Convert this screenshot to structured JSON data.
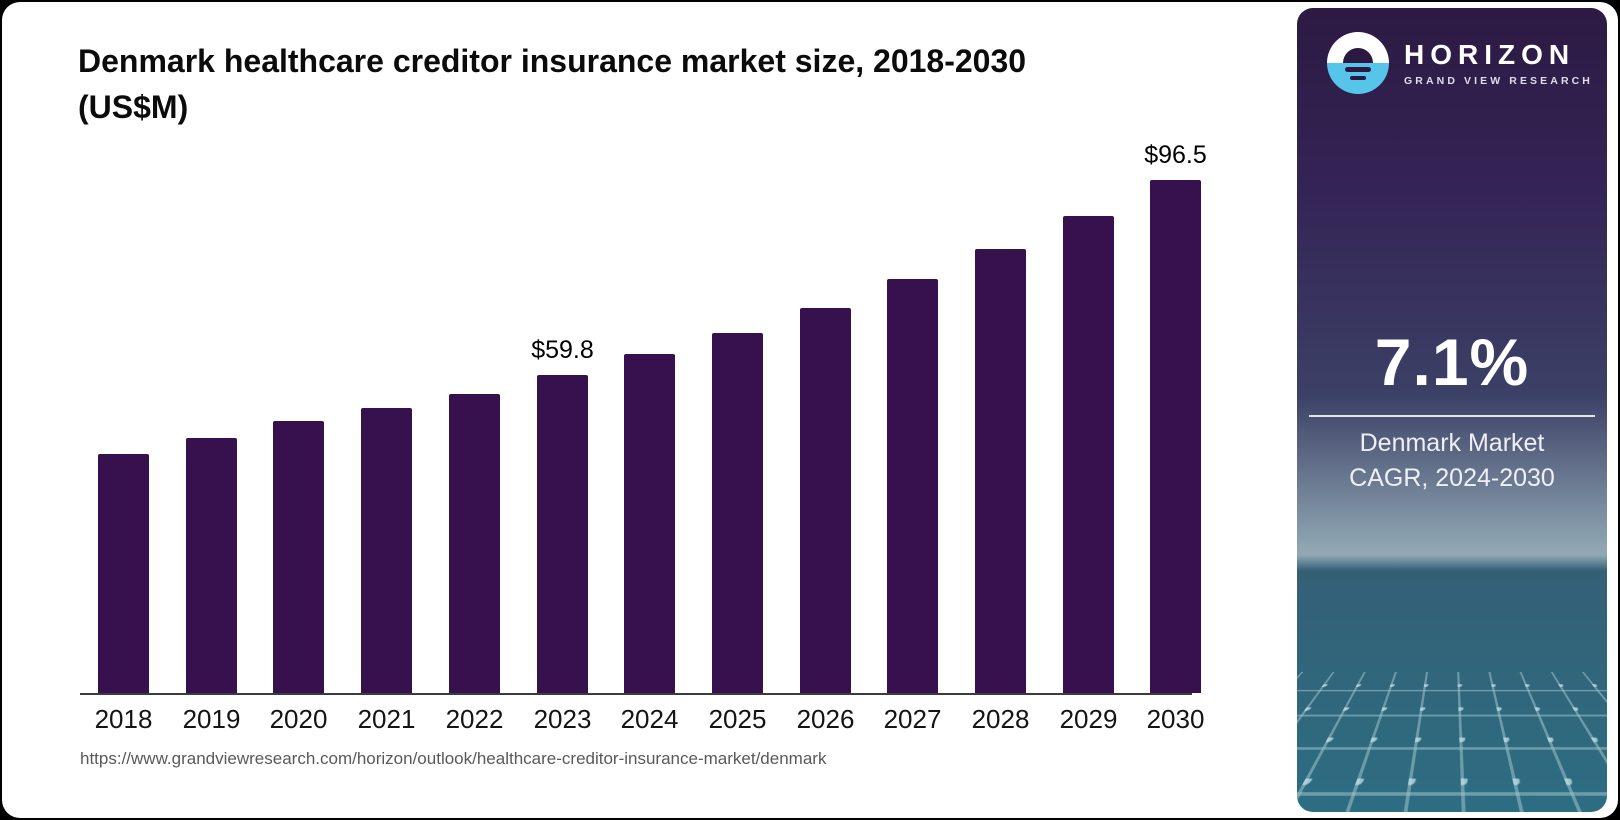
{
  "header": {
    "title_line1": "Denmark healthcare creditor insurance market size, 2018-2030",
    "title_line2": "(US$M)"
  },
  "chart_data": {
    "type": "bar",
    "title": "Denmark healthcare creditor insurance market size, 2018-2030 (US$M)",
    "categories": [
      "2018",
      "2019",
      "2020",
      "2021",
      "2022",
      "2023",
      "2024",
      "2025",
      "2026",
      "2027",
      "2028",
      "2029",
      "2030"
    ],
    "values": [
      45.0,
      47.9,
      51.1,
      53.7,
      56.3,
      59.8,
      63.7,
      67.8,
      72.5,
      77.8,
      83.5,
      89.7,
      96.5
    ],
    "point_labels": [
      "",
      "",
      "",
      "",
      "",
      "$59.8",
      "",
      "",
      "",
      "",
      "",
      "",
      "$96.5"
    ],
    "xlabel": "",
    "ylabel": "",
    "ylim": [
      0,
      100
    ],
    "grid": false,
    "legend": "none",
    "bar_color": "#37104e"
  },
  "footer": {
    "source_url": "https://www.grandviewresearch.com/horizon/outlook/healthcare-creditor-insurance-market/denmark"
  },
  "sidebar": {
    "brand_name": "HORIZON",
    "brand_sub": "GRAND VIEW RESEARCH",
    "stat_value": "7.1%",
    "stat_label_line1": "Denmark Market",
    "stat_label_line2": "CAGR, 2024-2030",
    "colors": {
      "panel_top": "#2c1a43",
      "panel_mid": "#3b4066",
      "panel_bottom": "#2d6d82",
      "logo_cyan": "#57c4e9",
      "logo_glyph": "#2b1941"
    }
  }
}
